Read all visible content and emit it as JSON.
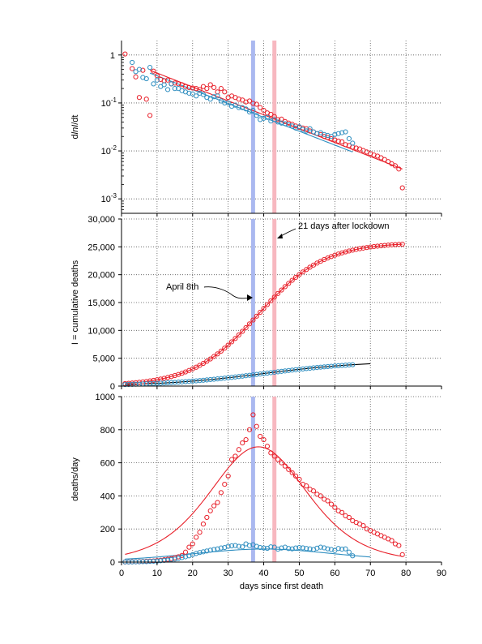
{
  "colors": {
    "red": "#e8202a",
    "blue": "#2f8ec0",
    "vline_blue": "#aab8f0",
    "vline_red": "#f7b8c0",
    "fit_blue": "#2a4f6a",
    "grid": "#555555"
  },
  "chart_data": [
    {
      "type": "scatter",
      "ylabel_parts": [
        "d",
        "ln",
        "I",
        "/dt"
      ],
      "yscale": "log",
      "ylim": [
        0.0005,
        2
      ],
      "xlim": [
        0,
        90
      ],
      "yticks": [
        {
          "value": 1,
          "label": "1"
        },
        {
          "value": 0.1,
          "label": "10",
          "exp": "-1"
        },
        {
          "value": 0.01,
          "label": "10",
          "exp": "-2"
        },
        {
          "value": 0.001,
          "label": "10",
          "exp": "-3"
        }
      ],
      "grid": true,
      "series": [
        {
          "color": "red",
          "fit": {
            "type": "exp",
            "x0": 8,
            "x1": 79,
            "y0": 0.48,
            "y1": 0.0042
          },
          "x": [
            1,
            3,
            4,
            5,
            6,
            7,
            8,
            9,
            10,
            11,
            12,
            13,
            14,
            15,
            16,
            17,
            18,
            19,
            20,
            21,
            22,
            23,
            24,
            25,
            26,
            27,
            28,
            29,
            30,
            31,
            32,
            33,
            34,
            35,
            36,
            37,
            38,
            39,
            40,
            41,
            42,
            43,
            44,
            45,
            46,
            47,
            48,
            49,
            50,
            51,
            52,
            53,
            54,
            55,
            56,
            57,
            58,
            59,
            60,
            61,
            62,
            63,
            64,
            65,
            66,
            67,
            68,
            69,
            70,
            71,
            72,
            73,
            74,
            75,
            76,
            77,
            78,
            79
          ],
          "y": [
            1.05,
            0.52,
            0.35,
            0.13,
            0.48,
            0.12,
            0.055,
            0.46,
            0.37,
            0.31,
            0.29,
            0.3,
            0.25,
            0.26,
            0.25,
            0.24,
            0.22,
            0.21,
            0.205,
            0.2,
            0.19,
            0.22,
            0.2,
            0.24,
            0.21,
            0.17,
            0.2,
            0.17,
            0.13,
            0.14,
            0.13,
            0.12,
            0.115,
            0.105,
            0.11,
            0.098,
            0.094,
            0.08,
            0.07,
            0.062,
            0.058,
            0.052,
            0.045,
            0.046,
            0.041,
            0.038,
            0.036,
            0.033,
            0.031,
            0.03,
            0.029,
            0.026,
            0.025,
            0.023,
            0.022,
            0.02,
            0.019,
            0.018,
            0.017,
            0.016,
            0.0155,
            0.0135,
            0.013,
            0.012,
            0.0115,
            0.011,
            0.0102,
            0.0095,
            0.0088,
            0.0082,
            0.0078,
            0.0072,
            0.0066,
            0.006,
            0.0054,
            0.0049,
            0.0042,
            0.0017
          ]
        },
        {
          "color": "blue",
          "fit": {
            "type": "exp",
            "x0": 8,
            "x1": 65,
            "y0": 0.42,
            "y1": 0.0095
          },
          "x": [
            3,
            4,
            5,
            6,
            7,
            8,
            9,
            10,
            11,
            12,
            13,
            14,
            15,
            16,
            17,
            18,
            19,
            20,
            21,
            22,
            23,
            24,
            25,
            26,
            27,
            28,
            29,
            30,
            31,
            32,
            33,
            34,
            35,
            36,
            37,
            38,
            39,
            40,
            41,
            42,
            43,
            44,
            45,
            46,
            47,
            48,
            49,
            50,
            51,
            52,
            53,
            54,
            55,
            56,
            57,
            58,
            59,
            60,
            61,
            62,
            63,
            64,
            65
          ],
          "y": [
            0.7,
            0.45,
            0.5,
            0.34,
            0.32,
            0.55,
            0.25,
            0.3,
            0.22,
            0.24,
            0.19,
            0.25,
            0.2,
            0.2,
            0.18,
            0.17,
            0.16,
            0.155,
            0.14,
            0.16,
            0.15,
            0.13,
            0.12,
            0.135,
            0.14,
            0.11,
            0.1,
            0.1,
            0.085,
            0.09,
            0.08,
            0.08,
            0.075,
            0.065,
            0.07,
            0.055,
            0.045,
            0.048,
            0.05,
            0.042,
            0.045,
            0.04,
            0.038,
            0.037,
            0.035,
            0.033,
            0.03,
            0.032,
            0.028,
            0.026,
            0.029,
            0.025,
            0.023,
            0.024,
            0.022,
            0.021,
            0.02,
            0.022,
            0.023,
            0.024,
            0.025,
            0.018,
            0.0145
          ]
        }
      ]
    },
    {
      "type": "scatter",
      "ylabel": "I = cumulative deaths",
      "ylim": [
        0,
        30000
      ],
      "xlim": [
        0,
        90
      ],
      "yticks": [
        {
          "value": 0,
          "label": "0"
        },
        {
          "value": 5000,
          "label": "5,000"
        },
        {
          "value": 10000,
          "label": "10,000"
        },
        {
          "value": 15000,
          "label": "15,000"
        },
        {
          "value": 20000,
          "label": "20,000"
        },
        {
          "value": 25000,
          "label": "25,000"
        },
        {
          "value": 30000,
          "label": "30,000"
        }
      ],
      "grid": true,
      "annotations": [
        {
          "text": "21 days after lockdown",
          "x": 43,
          "y": 27000
        },
        {
          "text": "April 8th",
          "x": 37,
          "y": 15700
        }
      ],
      "series": [
        {
          "color": "red",
          "model": "logistic",
          "params": {
            "K": 25800,
            "r": 0.108,
            "t0": 38.5
          },
          "x_range": [
            1,
            79
          ],
          "fit_range": [
            1,
            79
          ]
        },
        {
          "color": "blue",
          "model": "logistic",
          "params": {
            "K": 4500,
            "r": 0.07,
            "t0": 40
          },
          "x_range": [
            1,
            65
          ],
          "fit_range": [
            1,
            70
          ]
        }
      ]
    },
    {
      "type": "scatter",
      "ylabel": "deaths/day",
      "xlabel": "days since first death",
      "ylim": [
        0,
        1000
      ],
      "xlim": [
        0,
        90
      ],
      "yticks": [
        {
          "value": 0,
          "label": "0"
        },
        {
          "value": 200,
          "label": "200"
        },
        {
          "value": 400,
          "label": "400"
        },
        {
          "value": 600,
          "label": "600"
        },
        {
          "value": 800,
          "label": "800"
        },
        {
          "value": 1000,
          "label": "1000"
        }
      ],
      "xticks": [
        0,
        10,
        20,
        30,
        40,
        50,
        60,
        70,
        80,
        90
      ],
      "grid": true,
      "series": [
        {
          "color": "red",
          "fit": {
            "type": "logistic_deriv",
            "K": 25800,
            "r": 0.108,
            "t0": 38.5,
            "x0": 1,
            "x1": 79
          },
          "x": [
            1,
            2,
            3,
            4,
            5,
            6,
            7,
            8,
            9,
            10,
            11,
            12,
            13,
            14,
            15,
            16,
            17,
            18,
            19,
            20,
            21,
            22,
            23,
            24,
            25,
            26,
            27,
            28,
            29,
            30,
            31,
            32,
            33,
            34,
            35,
            36,
            37,
            38,
            39,
            40,
            41,
            42,
            43,
            44,
            45,
            46,
            47,
            48,
            49,
            50,
            51,
            52,
            53,
            54,
            55,
            56,
            57,
            58,
            59,
            60,
            61,
            62,
            63,
            64,
            65,
            66,
            67,
            68,
            69,
            70,
            71,
            72,
            73,
            74,
            75,
            76,
            77,
            78,
            79
          ],
          "y": [
            1,
            1,
            2,
            2,
            3,
            4,
            5,
            6,
            7,
            9,
            11,
            14,
            17,
            21,
            26,
            32,
            40,
            60,
            90,
            110,
            150,
            180,
            230,
            270,
            310,
            340,
            360,
            420,
            470,
            520,
            620,
            640,
            680,
            720,
            740,
            800,
            890,
            820,
            760,
            740,
            700,
            660,
            640,
            620,
            600,
            580,
            560,
            540,
            520,
            500,
            470,
            460,
            440,
            430,
            410,
            400,
            380,
            370,
            350,
            330,
            310,
            300,
            280,
            270,
            250,
            240,
            230,
            220,
            200,
            190,
            180,
            170,
            160,
            150,
            140,
            130,
            110,
            100,
            45
          ]
        },
        {
          "color": "blue",
          "fit": {
            "type": "logistic_deriv",
            "K": 4500,
            "r": 0.07,
            "t0": 40,
            "x0": 1,
            "x1": 70
          },
          "x": [
            1,
            2,
            3,
            4,
            5,
            6,
            7,
            8,
            9,
            10,
            11,
            12,
            13,
            14,
            15,
            16,
            17,
            18,
            19,
            20,
            21,
            22,
            23,
            24,
            25,
            26,
            27,
            28,
            29,
            30,
            31,
            32,
            33,
            34,
            35,
            36,
            37,
            38,
            39,
            40,
            41,
            42,
            43,
            44,
            45,
            46,
            47,
            48,
            49,
            50,
            51,
            52,
            53,
            54,
            55,
            56,
            57,
            58,
            59,
            60,
            61,
            62,
            63,
            64,
            65
          ],
          "y": [
            1,
            1,
            1,
            2,
            2,
            3,
            3,
            4,
            5,
            6,
            8,
            10,
            12,
            15,
            18,
            22,
            27,
            32,
            38,
            45,
            52,
            58,
            62,
            67,
            72,
            76,
            80,
            85,
            88,
            95,
            98,
            100,
            95,
            92,
            110,
            100,
            105,
            95,
            88,
            85,
            83,
            92,
            90,
            78,
            85,
            90,
            82,
            80,
            85,
            88,
            86,
            82,
            80,
            76,
            84,
            90,
            86,
            80,
            76,
            70,
            82,
            78,
            80,
            60,
            38
          ]
        }
      ]
    }
  ],
  "vertical_markers": [
    {
      "x": 37,
      "color": "vline_blue"
    },
    {
      "x": 43,
      "color": "vline_red"
    }
  ]
}
